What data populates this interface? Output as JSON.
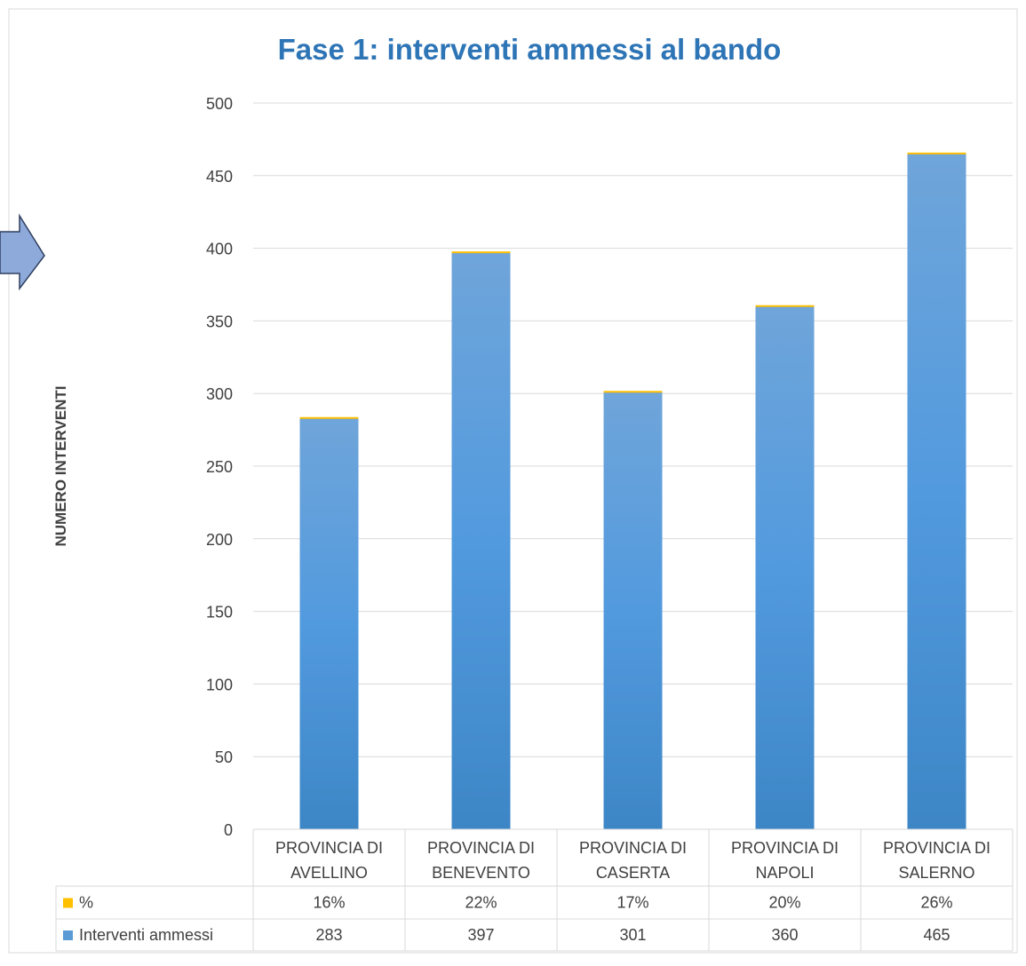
{
  "chart_data": {
    "type": "bar",
    "stacked": true,
    "title": "Fase 1: interventi ammessi al bando",
    "xlabel": "",
    "ylabel": "NUMERO INTERVENTI",
    "ylim": [
      0,
      500
    ],
    "yticks": [
      0,
      50,
      100,
      150,
      200,
      250,
      300,
      350,
      400,
      450,
      500
    ],
    "grid": true,
    "legend": "data-table",
    "categories": [
      [
        "PROVINCIA DI",
        "AVELLINO"
      ],
      [
        "PROVINCIA DI",
        "BENEVENTO"
      ],
      [
        "PROVINCIA DI",
        "CASERTA"
      ],
      [
        "PROVINCIA DI",
        "NAPOLI"
      ],
      [
        "PROVINCIA DI",
        "SALERNO"
      ]
    ],
    "series": [
      {
        "name": "%",
        "color": "#ffc000",
        "values": [
          0.16,
          0.22,
          0.17,
          0.2,
          0.26
        ],
        "display": [
          "16%",
          "22%",
          "17%",
          "20%",
          "26%"
        ]
      },
      {
        "name": "Interventi ammessi",
        "color": "#5b9bd5",
        "values": [
          283,
          397,
          301,
          360,
          465
        ],
        "display": [
          "283",
          "397",
          "301",
          "360",
          "465"
        ]
      }
    ],
    "colors": {
      "title": "#2e75b6",
      "bar_top": "#6fa5da",
      "bar_mid": "#529ade",
      "bar_bottom": "#3d86c6",
      "grid": "#d9d9d9",
      "text": "#404040",
      "arrow_fill": "#8eaadb",
      "arrow_stroke": "#2f3f5f"
    },
    "decoration": {
      "arrow_icon": "right-arrow-icon"
    }
  }
}
